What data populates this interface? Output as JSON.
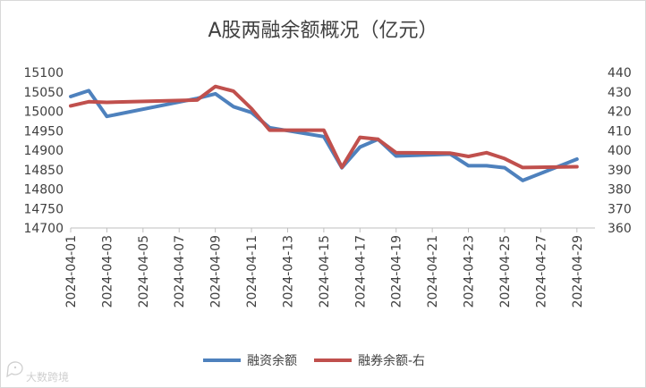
{
  "chart_data": {
    "type": "line",
    "title": "A股两融余额概况（亿元）",
    "xlabel": "",
    "ylabel": "",
    "grid": false,
    "legend_position": "bottom",
    "x_axis": {
      "type": "date",
      "range": [
        "2024-04-01",
        "2024-04-30"
      ],
      "tick_labels": [
        "2024-04-01",
        "2024-04-03",
        "2024-04-05",
        "2024-04-07",
        "2024-04-09",
        "2024-04-11",
        "2024-04-13",
        "2024-04-15",
        "2024-04-17",
        "2024-04-19",
        "2024-04-21",
        "2024-04-23",
        "2024-04-25",
        "2024-04-27",
        "2024-04-29"
      ]
    },
    "y_left": {
      "range": [
        14700,
        15100
      ],
      "ticks": [
        14700,
        14750,
        14800,
        14850,
        14900,
        14950,
        15000,
        15050,
        15100
      ]
    },
    "y_right": {
      "range": [
        360,
        440
      ],
      "ticks": [
        360,
        370,
        380,
        390,
        400,
        410,
        420,
        430,
        440
      ]
    },
    "series": [
      {
        "name": "融资余额",
        "axis": "left",
        "color": "#4e81bd",
        "points": [
          {
            "x": "2024-04-01",
            "y": 15038
          },
          {
            "x": "2024-04-02",
            "y": 15053
          },
          {
            "x": "2024-04-03",
            "y": 14987
          },
          {
            "x": "2024-04-08",
            "y": 15033
          },
          {
            "x": "2024-04-09",
            "y": 15045
          },
          {
            "x": "2024-04-10",
            "y": 15012
          },
          {
            "x": "2024-04-11",
            "y": 14997
          },
          {
            "x": "2024-04-12",
            "y": 14958
          },
          {
            "x": "2024-04-15",
            "y": 14935
          },
          {
            "x": "2024-04-16",
            "y": 14855
          },
          {
            "x": "2024-04-17",
            "y": 14908
          },
          {
            "x": "2024-04-18",
            "y": 14928
          },
          {
            "x": "2024-04-19",
            "y": 14885
          },
          {
            "x": "2024-04-22",
            "y": 14890
          },
          {
            "x": "2024-04-23",
            "y": 14860
          },
          {
            "x": "2024-04-24",
            "y": 14860
          },
          {
            "x": "2024-04-25",
            "y": 14855
          },
          {
            "x": "2024-04-26",
            "y": 14822
          },
          {
            "x": "2024-04-29",
            "y": 14877
          }
        ]
      },
      {
        "name": "融券余额-右",
        "axis": "right",
        "color": "#c0504d",
        "points": [
          {
            "x": "2024-04-01",
            "y": 422.8
          },
          {
            "x": "2024-04-02",
            "y": 424.9
          },
          {
            "x": "2024-04-03",
            "y": 424.6
          },
          {
            "x": "2024-04-08",
            "y": 425.8
          },
          {
            "x": "2024-04-09",
            "y": 432.8
          },
          {
            "x": "2024-04-10",
            "y": 430.4
          },
          {
            "x": "2024-04-11",
            "y": 421.4
          },
          {
            "x": "2024-04-12",
            "y": 410.3
          },
          {
            "x": "2024-04-15",
            "y": 410.3
          },
          {
            "x": "2024-04-16",
            "y": 391.2
          },
          {
            "x": "2024-04-17",
            "y": 406.6
          },
          {
            "x": "2024-04-18",
            "y": 405.6
          },
          {
            "x": "2024-04-19",
            "y": 398.7
          },
          {
            "x": "2024-04-22",
            "y": 398.5
          },
          {
            "x": "2024-04-23",
            "y": 396.8
          },
          {
            "x": "2024-04-24",
            "y": 398.7
          },
          {
            "x": "2024-04-25",
            "y": 395.7
          },
          {
            "x": "2024-04-26",
            "y": 391.1
          },
          {
            "x": "2024-04-29",
            "y": 391.5
          }
        ]
      }
    ]
  },
  "watermark": {
    "text": "大数跨境",
    "icon": "chat-bubble-logo-icon"
  }
}
